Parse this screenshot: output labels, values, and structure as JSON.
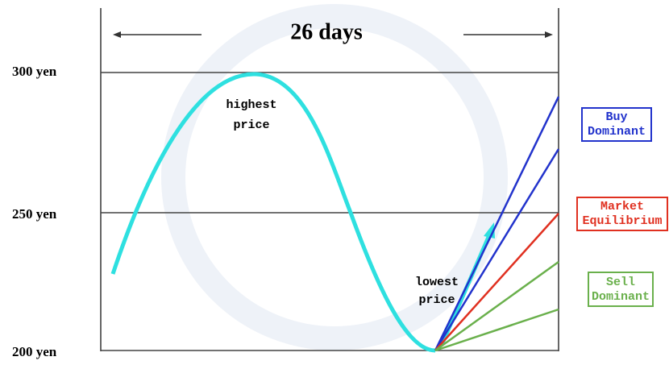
{
  "title": "26 days",
  "y_labels": [
    "300 yen",
    "250 yen",
    "200 yen"
  ],
  "annotations": {
    "highest": [
      "highest",
      "price"
    ],
    "lowest": [
      "lowest",
      "price"
    ]
  },
  "legend": {
    "buy": [
      "Buy",
      "Dominant"
    ],
    "market": [
      "Market",
      "Equilibrium"
    ],
    "sell": [
      "Sell",
      "Dominant"
    ]
  }
}
